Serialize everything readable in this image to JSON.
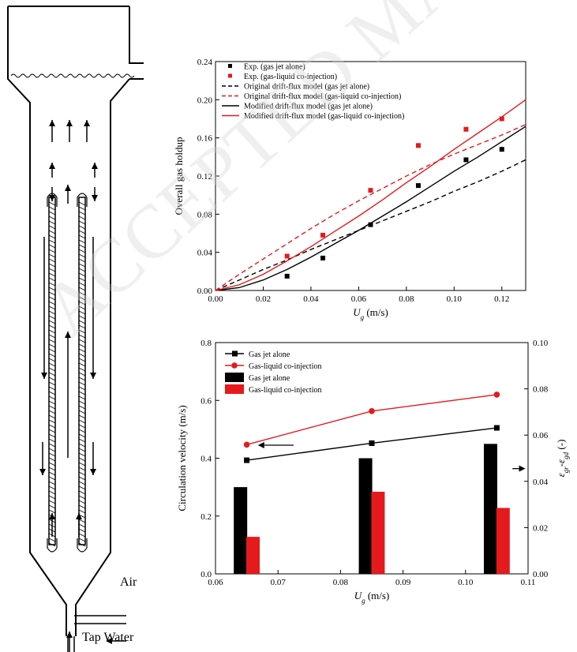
{
  "watermark": "ACCEPTED MANUSCRIPT",
  "diagram": {
    "air_label": "Air",
    "water_label": "Tap Water"
  },
  "colors": {
    "black": "#000000",
    "red": "#e41a1c"
  },
  "chart_data": [
    {
      "type": "scatter",
      "xlabel": "U_g (m/s)",
      "xlabel_main": "U",
      "xlabel_sub": "g",
      "xlabel_unit": " (m/s)",
      "ylabel": "Overall gas holdup",
      "xlim": [
        0.0,
        0.13
      ],
      "ylim": [
        0.0,
        0.24
      ],
      "xticks": [
        "0.00",
        "0.02",
        "0.04",
        "0.06",
        "0.08",
        "0.10",
        "0.12"
      ],
      "yticks": [
        "0.00",
        "0.04",
        "0.08",
        "0.12",
        "0.16",
        "0.20",
        "0.24"
      ],
      "legend_position": "top-left",
      "series": [
        {
          "name": "Exp. (gas jet alone)",
          "kind": "points",
          "color": "#000000",
          "x": [
            0.03,
            0.045,
            0.065,
            0.085,
            0.105,
            0.12
          ],
          "y": [
            0.015,
            0.034,
            0.069,
            0.11,
            0.137,
            0.148
          ]
        },
        {
          "name": "Exp. (gas-liquid co-injection)",
          "kind": "points",
          "color": "#e41a1c",
          "x": [
            0.03,
            0.045,
            0.065,
            0.085,
            0.105,
            0.12
          ],
          "y": [
            0.036,
            0.058,
            0.105,
            0.152,
            0.169,
            0.18
          ]
        },
        {
          "name": "Original drift-flux model (gas jet alone)",
          "kind": "line",
          "dash": true,
          "color": "#000000",
          "x": [
            0,
            0.01,
            0.02,
            0.03,
            0.04,
            0.05,
            0.06,
            0.07,
            0.08,
            0.09,
            0.1,
            0.11,
            0.12,
            0.13
          ],
          "y": [
            0,
            0.011,
            0.022,
            0.032,
            0.043,
            0.053,
            0.063,
            0.073,
            0.083,
            0.093,
            0.104,
            0.114,
            0.125,
            0.137
          ]
        },
        {
          "name": "Original drift-flux model (gas-liquid co-injection)",
          "kind": "line",
          "dash": true,
          "color": "#e41a1c",
          "x": [
            0,
            0.01,
            0.02,
            0.03,
            0.04,
            0.05,
            0.06,
            0.07,
            0.08,
            0.09,
            0.1,
            0.11,
            0.12,
            0.13
          ],
          "y": [
            0,
            0.017,
            0.033,
            0.049,
            0.065,
            0.08,
            0.094,
            0.107,
            0.12,
            0.132,
            0.143,
            0.153,
            0.163,
            0.174
          ]
        },
        {
          "name": "Modified drift-flux model (gas jet alone)",
          "kind": "line",
          "dash": false,
          "color": "#000000",
          "x": [
            0,
            0.01,
            0.02,
            0.03,
            0.04,
            0.05,
            0.06,
            0.07,
            0.08,
            0.09,
            0.1,
            0.11,
            0.12,
            0.13
          ],
          "y": [
            0,
            0.003,
            0.011,
            0.022,
            0.035,
            0.049,
            0.063,
            0.078,
            0.093,
            0.109,
            0.125,
            0.14,
            0.156,
            0.172
          ]
        },
        {
          "name": "Modified drift-flux model (gas-liquid co-injection)",
          "kind": "line",
          "dash": false,
          "color": "#e41a1c",
          "x": [
            0,
            0.01,
            0.02,
            0.03,
            0.04,
            0.05,
            0.06,
            0.07,
            0.08,
            0.09,
            0.1,
            0.11,
            0.12,
            0.13
          ],
          "y": [
            0,
            0.006,
            0.017,
            0.031,
            0.046,
            0.062,
            0.078,
            0.095,
            0.113,
            0.13,
            0.148,
            0.165,
            0.182,
            0.2
          ]
        }
      ]
    },
    {
      "type": "bar",
      "xlabel": "U_g (m/s)",
      "xlabel_main": "U",
      "xlabel_sub": "g",
      "xlabel_unit": " (m/s)",
      "ylabel": "Circulation velocity (m/s)",
      "y2label": "ε_gr - ε_gd (-)",
      "y2label_e": "ε",
      "y2label_sub1": "gr",
      "y2label_mid": "-ε",
      "y2label_sub2": "gd",
      "y2label_unit": " (-)",
      "xlim": [
        0.06,
        0.11
      ],
      "ylim": [
        0.0,
        0.8
      ],
      "y2lim": [
        0.0,
        0.1
      ],
      "xticks": [
        "0.06",
        "0.07",
        "0.08",
        "0.09",
        "0.10",
        "0.11"
      ],
      "yticks": [
        "0.0",
        "0.2",
        "0.4",
        "0.6",
        "0.8"
      ],
      "y2ticks": [
        "0.00",
        "0.02",
        "0.04",
        "0.06",
        "0.08",
        "0.10"
      ],
      "legend_position": "top-left",
      "line_series": [
        {
          "name": "Gas jet alone",
          "color": "#000000",
          "marker": "square",
          "x": [
            0.065,
            0.085,
            0.105
          ],
          "y": [
            0.393,
            0.452,
            0.505
          ]
        },
        {
          "name": "Gas-liquid co-injection",
          "color": "#e41a1c",
          "marker": "circle",
          "x": [
            0.065,
            0.085,
            0.105
          ],
          "y": [
            0.447,
            0.563,
            0.62
          ]
        }
      ],
      "bar_series": [
        {
          "name": "Gas jet alone",
          "color": "#000000",
          "x": [
            0.064,
            0.084,
            0.104
          ],
          "y": [
            0.0375,
            0.05,
            0.0562
          ]
        },
        {
          "name": "Gas-liquid co-injection",
          "color": "#e41a1c",
          "x": [
            0.066,
            0.086,
            0.106
          ],
          "y": [
            0.016,
            0.0355,
            0.0285
          ]
        }
      ]
    }
  ]
}
